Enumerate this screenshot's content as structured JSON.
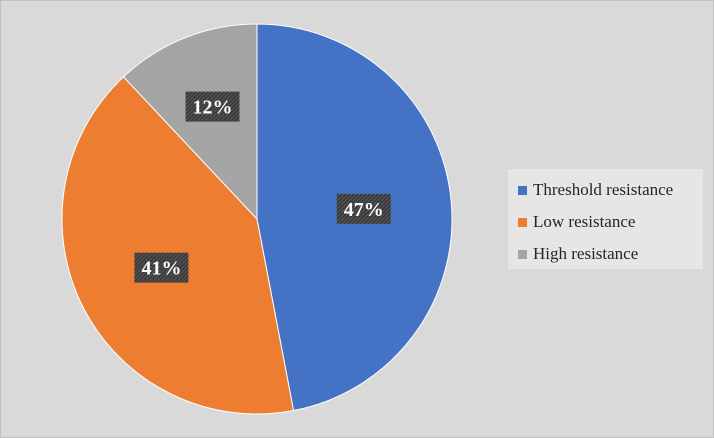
{
  "chart_data": {
    "type": "pie",
    "title": "",
    "categories": [
      "Threshold resistance",
      "Low resistance",
      "High resistance"
    ],
    "values": [
      47,
      41,
      12
    ],
    "labels": [
      "47%",
      "41%",
      "12%"
    ],
    "colors": [
      "#4472c4",
      "#ed7d31",
      "#a5a5a5"
    ],
    "start_angle_deg": 0,
    "direction": "clockwise",
    "legend_position": "right",
    "label_style": "white text on dark patterned box"
  },
  "legend": {
    "items": [
      {
        "label": "Threshold resistance",
        "color": "#4472c4"
      },
      {
        "label": "Low resistance",
        "color": "#ed7d31"
      },
      {
        "label": "High resistance",
        "color": "#a5a5a5"
      }
    ]
  }
}
